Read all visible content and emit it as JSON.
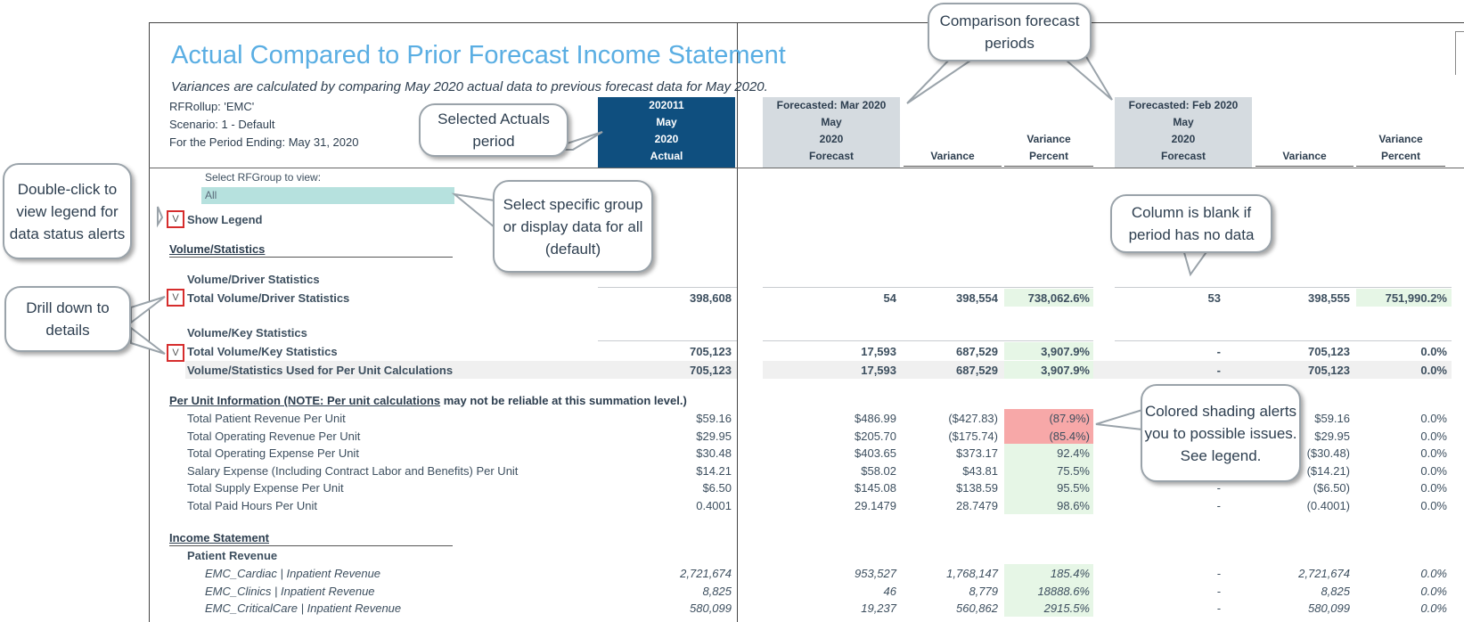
{
  "report": {
    "title": "Actual Compared to Prior Forecast Income Statement",
    "subtitle": "Variances are calculated by comparing May 2020 actual data to previous forecast data for May 2020.",
    "rfrollup": "RFRollup: 'EMC'",
    "scenario": "Scenario: 1 - Default",
    "period_ending": "For the Period Ending: May 31, 2020"
  },
  "columns": {
    "actual": [
      "202011",
      "May",
      "2020",
      "Actual"
    ],
    "forecast1": [
      "Forecasted: Mar 2020",
      "May",
      "2020",
      "Forecast"
    ],
    "forecast2": [
      "Forecasted: Feb 2020",
      "May",
      "2020",
      "Forecast"
    ],
    "variance": "Variance",
    "variance_pct_1": "Variance",
    "variance_pct_2": "Percent"
  },
  "selector": {
    "label": "Select RFGroup to view:",
    "value": "All"
  },
  "show_legend": "Show Legend",
  "toggle_glyph": "V",
  "sections": {
    "volume": "Volume/Statistics",
    "driver_stats": "Volume/Driver Statistics",
    "key_stats": "Volume/Key Statistics",
    "per_unit_underlined": "Per Unit Information (NOTE: Per unit calculations",
    "per_unit_rest": " may not be reliable at this summation level.)",
    "income": "Income Statement",
    "patient_revenue": "Patient Revenue"
  },
  "rows": {
    "total_driver": {
      "label": "Total Volume/Driver Statistics",
      "vals": [
        "398,608",
        "54",
        "398,554",
        "738,062.6%",
        "53",
        "398,555",
        "751,990.2%"
      ]
    },
    "total_key": {
      "label": "Total Volume/Key Statistics",
      "vals": [
        "705,123",
        "17,593",
        "687,529",
        "3,907.9%",
        "-",
        "705,123",
        "0.0%"
      ]
    },
    "per_unit_calc": {
      "label": "Volume/Statistics Used for Per Unit Calculations",
      "vals": [
        "705,123",
        "17,593",
        "687,529",
        "3,907.9%",
        "-",
        "705,123",
        "0.0%"
      ]
    },
    "per_unit": [
      {
        "label": "Total Patient Revenue Per Unit",
        "vals": [
          "$59.16",
          "$486.99",
          "($427.83)",
          "(87.9%)",
          "",
          "$59.16",
          "0.0%"
        ]
      },
      {
        "label": "Total Operating Revenue Per Unit",
        "vals": [
          "$29.95",
          "$205.70",
          "($175.74)",
          "(85.4%)",
          "",
          "$29.95",
          "0.0%"
        ]
      },
      {
        "label": "Total Operating Expense Per Unit",
        "vals": [
          "$30.48",
          "$403.65",
          "$373.17",
          "92.4%",
          "",
          "($30.48)",
          "0.0%"
        ]
      },
      {
        "label": "Salary Expense (Including Contract Labor and Benefits) Per Unit",
        "vals": [
          "$14.21",
          "$58.02",
          "$43.81",
          "75.5%",
          "",
          "($14.21)",
          "0.0%"
        ]
      },
      {
        "label": "Total Supply Expense Per Unit",
        "vals": [
          "$6.50",
          "$145.08",
          "$138.59",
          "95.5%",
          "-",
          "($6.50)",
          "0.0%"
        ]
      },
      {
        "label": "Total Paid Hours Per Unit",
        "vals": [
          "0.4001",
          "29.1479",
          "28.7479",
          "98.6%",
          "-",
          "(0.4001)",
          "0.0%"
        ]
      }
    ],
    "revenue": [
      {
        "label": "EMC_Cardiac | Inpatient Revenue",
        "vals": [
          "2,721,674",
          "953,527",
          "1,768,147",
          "185.4%",
          "-",
          "2,721,674",
          "0.0%"
        ]
      },
      {
        "label": "EMC_Clinics | Inpatient Revenue",
        "vals": [
          "8,825",
          "46",
          "8,779",
          "18888.6%",
          "-",
          "8,825",
          "0.0%"
        ]
      },
      {
        "label": "EMC_CriticalCare | Inpatient Revenue",
        "vals": [
          "580,099",
          "19,237",
          "560,862",
          "2915.5%",
          "-",
          "580,099",
          "0.0%"
        ]
      }
    ]
  },
  "callouts": {
    "comparison": "Comparison forecast periods",
    "actuals": "Selected Actuals period",
    "double_click": "Double-click to view legend for data status alerts",
    "select_group": "Select specific group or display data for all (default)",
    "blank": "Column is blank if period has no data",
    "drill": "Drill down to details",
    "shading": "Colored shading alerts you to possible issues. See legend."
  },
  "colors": {
    "title": "#5aaee3",
    "actual_header": "#0f4f7f",
    "forecast_header": "#d5dbe0",
    "alert_red": "#f7a8a8",
    "ok_green": "#e6f6e6",
    "selector": "#b6e1de",
    "toggle_border": "#d62d2d"
  }
}
